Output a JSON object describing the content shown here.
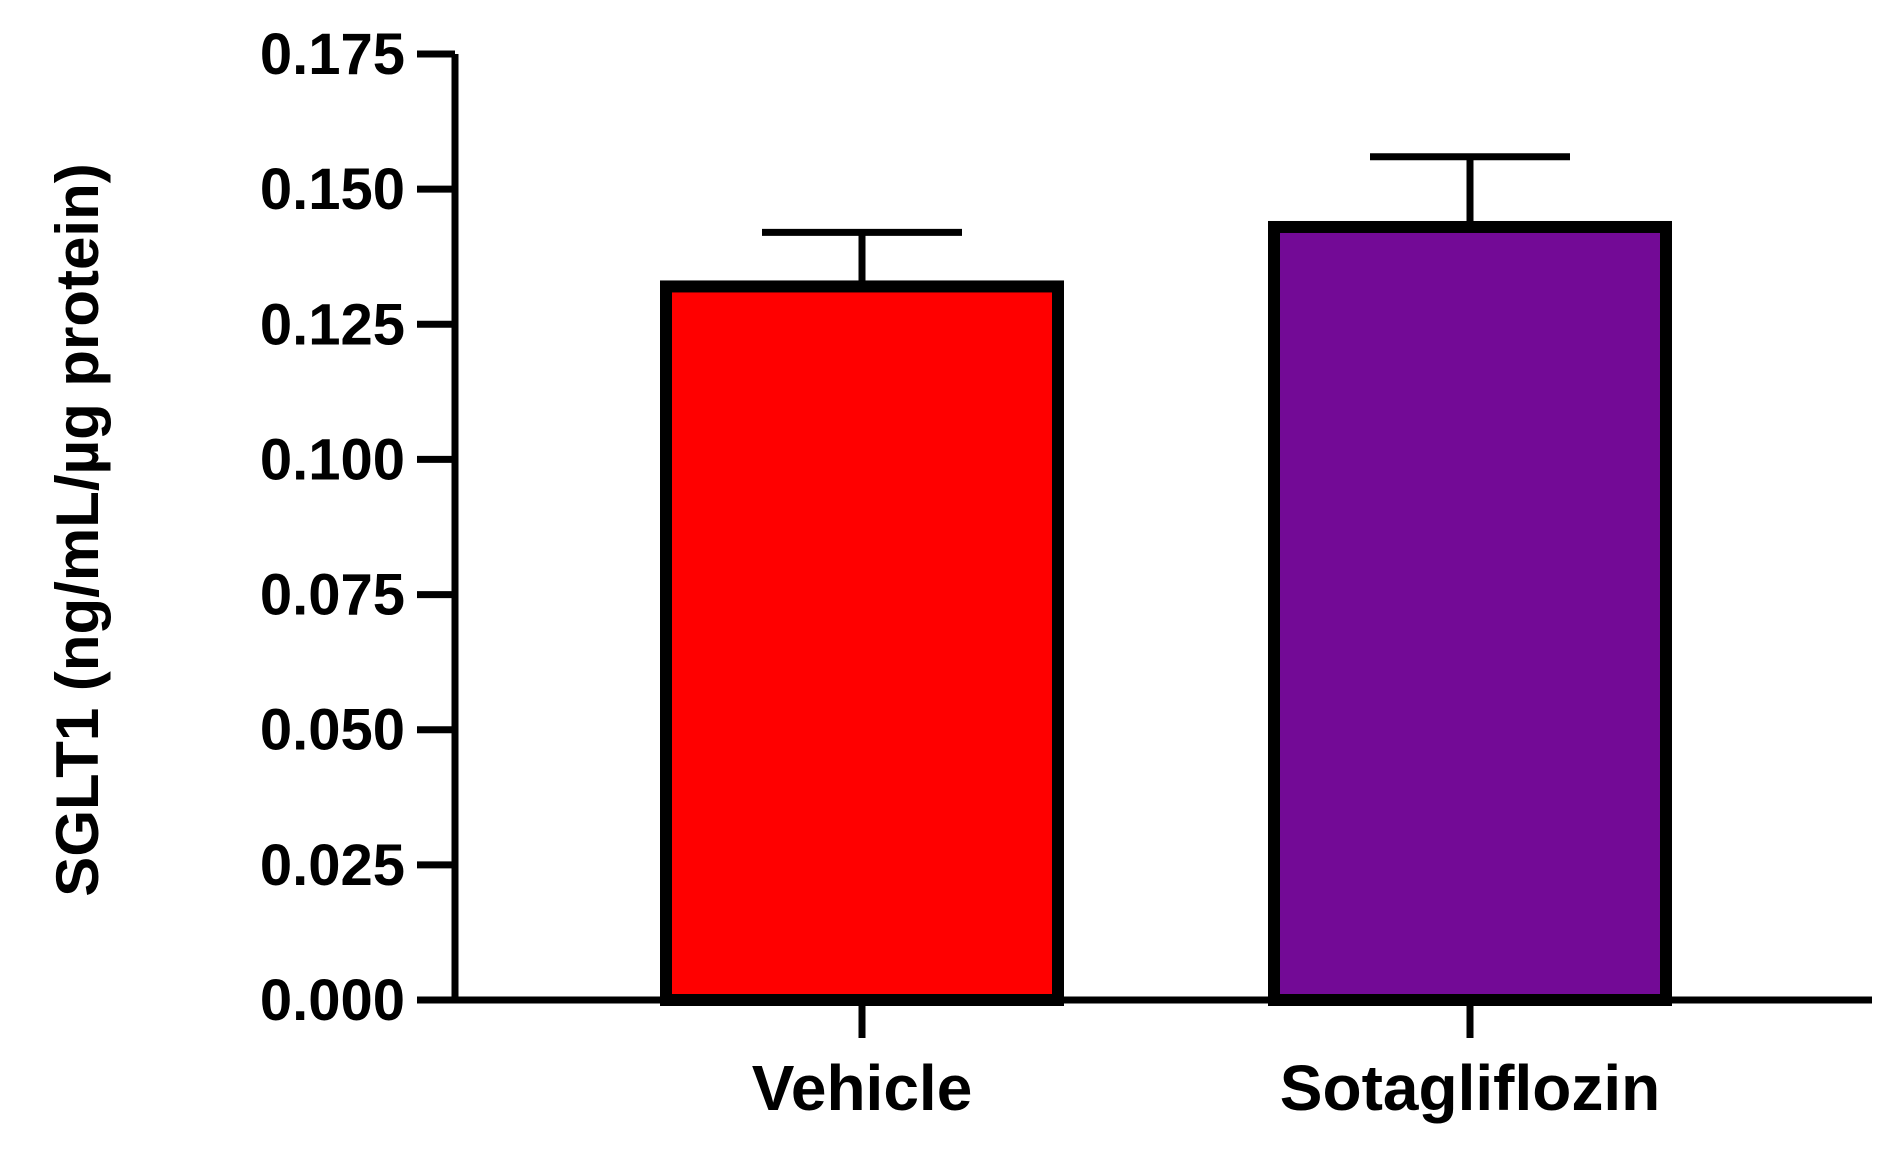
{
  "chart_data": {
    "type": "bar",
    "title": "",
    "xlabel": "",
    "ylabel": "SGLT1 (ng/mL/µg protein)",
    "categories": [
      "Vehicle",
      "Sotagliflozin"
    ],
    "values": [
      0.132,
      0.143
    ],
    "errors": [
      0.01,
      0.013
    ],
    "colors": [
      "#ff0000",
      "#730a96"
    ],
    "ylim": [
      0,
      0.175
    ],
    "yticks": [
      0.0,
      0.025,
      0.05,
      0.075,
      0.1,
      0.125,
      0.15,
      0.175
    ],
    "ytick_labels": [
      "0.000",
      "0.025",
      "0.050",
      "0.075",
      "0.100",
      "0.125",
      "0.150",
      "0.175"
    ],
    "grid": false,
    "legend": "none"
  }
}
